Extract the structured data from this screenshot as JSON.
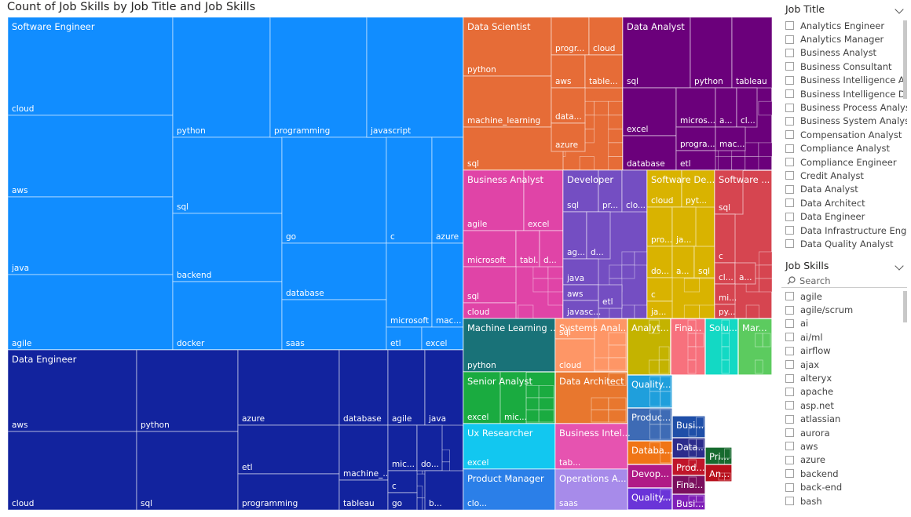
{
  "chart_data": {
    "type": "treemap",
    "title": "Count of Job Skills by Job Title and Job Skills",
    "groups": [
      {
        "name": "Software Engineer",
        "color": "#118DFF",
        "skills": [
          "cloud",
          "aws",
          "java",
          "agile",
          "python",
          "sql",
          "backend",
          "docker",
          "programming",
          "go",
          "database",
          "saas",
          "javascript",
          "c",
          "azure",
          "microsoft",
          "etl",
          "mac...",
          "excel"
        ]
      },
      {
        "name": "Data Engineer",
        "color": "#12239E",
        "skills": [
          "aws",
          "cloud",
          "python",
          "sql",
          "azure",
          "etl",
          "programming",
          "database",
          "machine_...",
          "tableau",
          "agile",
          "java",
          "mic...",
          "c",
          "go",
          "do...",
          "b..."
        ]
      },
      {
        "name": "Data Scientist",
        "color": "#E66C37",
        "skills": [
          "python",
          "machine_learning",
          "sql",
          "progr...",
          "cloud",
          "aws",
          "table...",
          "data...",
          "azure"
        ]
      },
      {
        "name": "Data Analyst",
        "color": "#6B007B",
        "skills": [
          "sql",
          "python",
          "tableau",
          "excel",
          "database",
          "micros...",
          "progra...",
          "etl",
          "a...",
          "cl...",
          "mac..."
        ]
      },
      {
        "name": "Business Analyst",
        "color": "#E044A7",
        "skills": [
          "agile",
          "excel",
          "microsoft",
          "tabl...",
          "d...",
          "sql",
          "cloud"
        ]
      },
      {
        "name": "Developer",
        "color": "#744EC2",
        "skills": [
          "sql",
          "pr...",
          "clo...",
          "ag...",
          "d...",
          "java",
          "aws",
          "etl",
          "javasc..."
        ]
      },
      {
        "name": "Software De...",
        "color": "#D9B300",
        "skills": [
          "cloud",
          "pyt...",
          "pro...",
          "ja...",
          "do...",
          "a...",
          "sql",
          "c",
          "ja..."
        ]
      },
      {
        "name": "Software ...",
        "color": "#D64550",
        "skills": [
          "sql",
          "c",
          "cl...",
          "a...",
          "mi...",
          "py..."
        ]
      },
      {
        "name": "Machine Learning ...",
        "color": "#197278",
        "skills": [
          "python"
        ]
      },
      {
        "name": "Systems Anal...",
        "color": "#FE9666",
        "skills": [
          "sql",
          "cloud"
        ]
      },
      {
        "name": "Analyt...",
        "color": "#C4B300",
        "skills": []
      },
      {
        "name": "Fina...",
        "color": "#F7717D",
        "skills": []
      },
      {
        "name": "Solu...",
        "color": "#13D9C4",
        "skills": []
      },
      {
        "name": "Mar...",
        "color": "#5CCB5F",
        "skills": []
      },
      {
        "name": "Senior Analyst",
        "color": "#1AAB40",
        "skills": [
          "excel",
          "mic..."
        ]
      },
      {
        "name": "Data Architect",
        "color": "#E8772E",
        "skills": []
      },
      {
        "name": "Quality...",
        "color": "#1F9FDC",
        "skills": []
      },
      {
        "name": "Produc...",
        "color": "#3E6BB5",
        "skills": []
      },
      {
        "name": "Databa...",
        "color": "#F07516",
        "skills": []
      },
      {
        "name": "Devop...",
        "color": "#B01A86",
        "skills": []
      },
      {
        "name": "Quality...",
        "color": "#6A34D8",
        "skills": []
      },
      {
        "name": "Busi...",
        "color": "#1F4FA8",
        "skills": []
      },
      {
        "name": "Data...",
        "color": "#2C2C8C",
        "skills": []
      },
      {
        "name": "Prod...",
        "color": "#C0162A",
        "skills": []
      },
      {
        "name": "Fina...",
        "color": "#7B0F5E",
        "skills": []
      },
      {
        "name": "Busi...",
        "color": "#7F1FB8",
        "skills": []
      },
      {
        "name": "Pri...",
        "color": "#166A2E",
        "skills": []
      },
      {
        "name": "An...",
        "color": "#B8101C",
        "skills": []
      },
      {
        "name": "Ux Researcher",
        "color": "#12C7F0",
        "skills": [
          "excel"
        ]
      },
      {
        "name": "Business Intel...",
        "color": "#E653B0",
        "skills": [
          "tab..."
        ]
      },
      {
        "name": "Product Manager",
        "color": "#2B7FE8",
        "skills": [
          "clo..."
        ]
      },
      {
        "name": "Operations A...",
        "color": "#A78BEA",
        "skills": [
          "saas"
        ]
      }
    ]
  },
  "slicers": {
    "job_title": {
      "header": "Job Title",
      "items": [
        "Analytics Engineer",
        "Analytics Manager",
        "Business Analyst",
        "Business Consultant",
        "Business Intelligence An...",
        "Business Intelligence De...",
        "Business Process Analyst",
        "Business System Analyst",
        "Compensation Analyst",
        "Compliance Analyst",
        "Compliance Engineer",
        "Credit Analyst",
        "Data Analyst",
        "Data Architect",
        "Data Engineer",
        "Data Infrastructure Engi...",
        "Data Quality Analyst"
      ]
    },
    "job_skills": {
      "header": "Job Skills",
      "search_placeholder": "Search",
      "items": [
        "agile",
        "agile/scrum",
        "ai",
        "ai/ml",
        "airflow",
        "ajax",
        "alteryx",
        "apache",
        "asp.net",
        "atlassian",
        "aurora",
        "aws",
        "azure",
        "backend",
        "back-end",
        "bash"
      ]
    }
  },
  "icons": {
    "dropdown": "chevron-down-icon",
    "search": "search-icon"
  }
}
